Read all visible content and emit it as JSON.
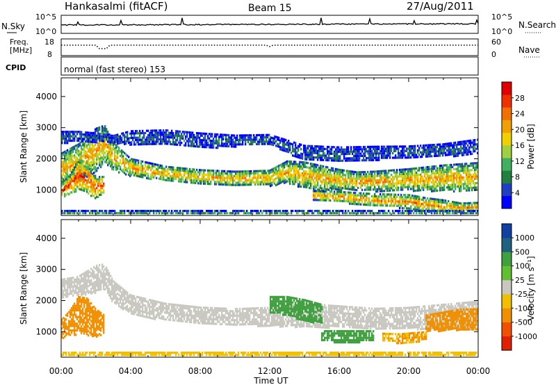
{
  "header": {
    "site": "Hankasalmi (fitACF)",
    "beam": "Beam 15",
    "date": "27/Aug/2011"
  },
  "noise_panel": {
    "left_label": "N.Sky",
    "right_label": "N.Search",
    "left_ticks": [
      "10^5",
      "10^0"
    ],
    "right_ticks": [
      "10^5",
      "10^0"
    ]
  },
  "freq_panel": {
    "left_label_top": "Freq.",
    "left_label_bottom": "[MHz]",
    "left_ticks": [
      "18",
      "8"
    ],
    "right_label": "Nave",
    "right_ticks": [
      "60",
      "0"
    ]
  },
  "cpid_panel": {
    "label": "CPID",
    "text": "normal (fast stereo) 153"
  },
  "chart_data": [
    {
      "type": "heatmap",
      "name": "power",
      "ylabel": "Slant Range [km]",
      "ylim": [
        180,
        4600
      ],
      "yticks": [
        "4000",
        "3000",
        "2000",
        "1000"
      ],
      "ytick_values": [
        4000,
        3000,
        2000,
        1000
      ],
      "xlim": [
        0,
        24
      ],
      "colorbar_label": "Power [dB]",
      "colorbar_ticks": [
        "28",
        "24",
        "20",
        "16",
        "12",
        "8",
        "4"
      ],
      "colorbar_colors": [
        "#0000ff",
        "#2040c0",
        "#208040",
        "#40b060",
        "#a0d040",
        "#f0d000",
        "#f0a000",
        "#f07000",
        "#f03000",
        "#e00000"
      ],
      "bands": [
        {
          "t": [
            0.0,
            1.0,
            2.0,
            2.5,
            3.0,
            4.0,
            6.0,
            8.0,
            10.0,
            12.0,
            13.0,
            14.0,
            15.0,
            16.0,
            17.0,
            18.0,
            20.0,
            22.0,
            24.0
          ],
          "range": [
            1700,
            1900,
            2300,
            2500,
            2100,
            1750,
            1550,
            1450,
            1400,
            1400,
            1600,
            1500,
            1400,
            1350,
            1300,
            1300,
            1350,
            1400,
            1450
          ],
          "width": [
            500,
            600,
            700,
            600,
            450,
            280,
            230,
            220,
            220,
            250,
            350,
            420,
            400,
            330,
            300,
            320,
            350,
            420,
            450
          ],
          "level": 20
        },
        {
          "t": [
            0.0,
            0.5,
            1.0,
            1.5,
            2.0,
            2.5
          ],
          "range": [
            1000,
            1200,
            1500,
            1400,
            1100,
            1200
          ],
          "width": [
            220,
            300,
            500,
            500,
            350,
            250
          ],
          "level": 26
        },
        {
          "t": [
            14.5,
            16.0,
            18.0,
            20.0,
            21.0,
            22.0,
            23.0,
            24.0
          ],
          "range": [
            850,
            800,
            700,
            650,
            550,
            500,
            450,
            500
          ],
          "width": [
            150,
            170,
            200,
            220,
            220,
            200,
            150,
            120
          ],
          "level": 22
        },
        {
          "t": [
            0.0,
            1.0,
            2.0,
            3.0,
            4.0,
            6.0,
            8.0,
            10.0,
            12.0,
            14.0,
            16.0,
            18.0,
            20.0,
            22.0,
            24.0
          ],
          "range": [
            2700,
            2750,
            2700,
            2650,
            2700,
            2700,
            2600,
            2600,
            2650,
            2200,
            2150,
            2200,
            2250,
            2300,
            2400
          ],
          "width": [
            200,
            150,
            150,
            120,
            220,
            250,
            250,
            180,
            150,
            250,
            250,
            220,
            180,
            200,
            250
          ],
          "level": 6
        },
        {
          "t": [
            0.0,
            2.0,
            4.0,
            6.0,
            8.0,
            10.0,
            12.0,
            14.0,
            16.0,
            18.0,
            20.0,
            22.0,
            24.0
          ],
          "range": [
            300,
            300,
            300,
            300,
            300,
            300,
            300,
            300,
            300,
            300,
            300,
            300,
            300
          ],
          "width": [
            60,
            60,
            60,
            60,
            60,
            60,
            60,
            60,
            60,
            60,
            60,
            60,
            60
          ],
          "level": 10
        }
      ]
    },
    {
      "type": "heatmap",
      "name": "velocity",
      "ylabel": "Slant Range [km]",
      "ylim": [
        180,
        4600
      ],
      "yticks": [
        "4000",
        "3000",
        "2000",
        "1000"
      ],
      "ytick_values": [
        4000,
        3000,
        2000,
        1000
      ],
      "xlim": [
        0,
        24
      ],
      "xlabel": "Time UT",
      "xticks": [
        "00:00",
        "04:00",
        "08:00",
        "12:00",
        "16:00",
        "20:00",
        "00:00"
      ],
      "xtick_values": [
        0,
        4,
        8,
        12,
        16,
        20,
        24
      ],
      "colorbar_label": "Velocity [m s⁻¹]",
      "colorbar_ticks": [
        "1000",
        "500",
        "100",
        "25",
        "-25",
        "-100",
        "-500",
        "-1000"
      ],
      "colorbar_colors": [
        "#1040a0",
        "#206080",
        "#40a040",
        "#60c030",
        "#c8c8c0",
        "#f0c000",
        "#f09000",
        "#f05000",
        "#e02000"
      ],
      "bands": [
        {
          "t": [
            0.0,
            1.0,
            2.0,
            2.5,
            3.0,
            4.0,
            6.0,
            8.0,
            10.0,
            12.0,
            14.0,
            16.0,
            18.0,
            20.0,
            22.0,
            24.0
          ],
          "range": [
            2400,
            2500,
            2700,
            2800,
            2300,
            1900,
            1650,
            1550,
            1500,
            1500,
            1550,
            1500,
            1450,
            1450,
            1500,
            1550
          ],
          "width": [
            300,
            300,
            450,
            400,
            350,
            300,
            280,
            260,
            260,
            300,
            380,
            350,
            320,
            350,
            400,
            450
          ],
          "level": 0
        },
        {
          "t": [
            0.0,
            0.5,
            1.0,
            1.5,
            2.0,
            2.5
          ],
          "range": [
            1100,
            1300,
            1550,
            1500,
            1300,
            1250
          ],
          "width": [
            300,
            400,
            600,
            600,
            450,
            300
          ],
          "level": -300
        },
        {
          "t": [
            12.0,
            13.0,
            14.0,
            15.0
          ],
          "range": [
            1900,
            1850,
            1700,
            1600
          ],
          "width": [
            250,
            300,
            350,
            300
          ],
          "level": 200
        },
        {
          "t": [
            15.0,
            16.0,
            17.0,
            18.0
          ],
          "range": [
            900,
            850,
            850,
            900
          ],
          "width": [
            150,
            200,
            200,
            150
          ],
          "level": 450
        },
        {
          "t": [
            18.5,
            19.5,
            20.5,
            21.0
          ],
          "range": [
            850,
            800,
            850,
            900
          ],
          "width": [
            120,
            150,
            150,
            120
          ],
          "level": -100
        },
        {
          "t": [
            21.0,
            22.0,
            23.0,
            24.0
          ],
          "range": [
            1300,
            1350,
            1400,
            1400
          ],
          "width": [
            250,
            300,
            350,
            350
          ],
          "level": -300
        },
        {
          "t": [
            0.0,
            2.0,
            4.0,
            6.0,
            8.0,
            10.0,
            12.0,
            14.0,
            16.0,
            18.0,
            20.0,
            22.0,
            24.0
          ],
          "range": [
            300,
            300,
            300,
            300,
            300,
            300,
            300,
            300,
            300,
            300,
            300,
            300,
            300
          ],
          "width": [
            60,
            60,
            60,
            60,
            60,
            60,
            60,
            60,
            60,
            60,
            60,
            60,
            60
          ],
          "level": -50
        }
      ]
    }
  ]
}
